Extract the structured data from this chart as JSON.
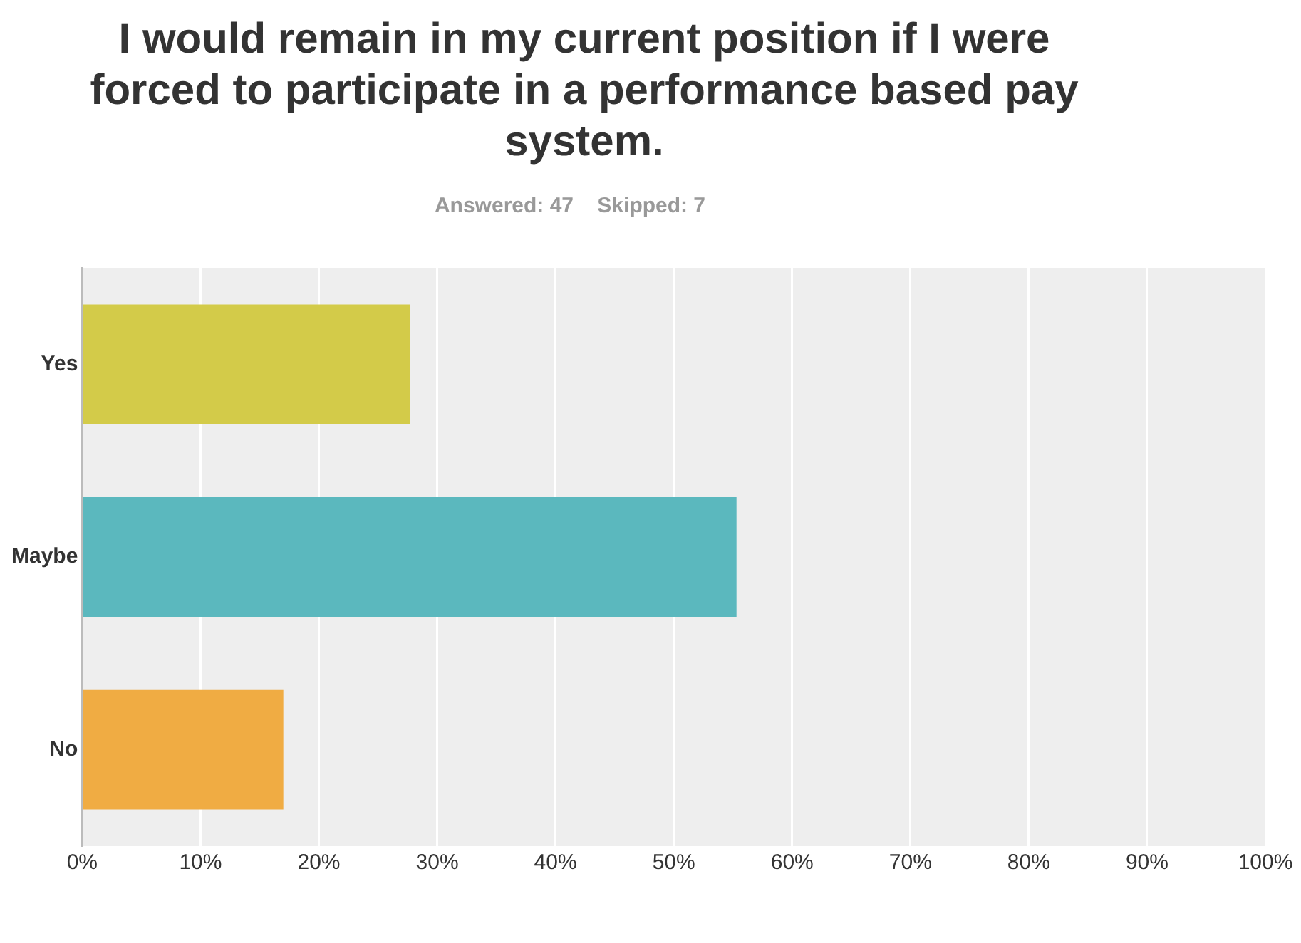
{
  "chart_data": {
    "type": "bar",
    "orientation": "horizontal",
    "title": "I would remain in my current position if I were forced to participate in a performance based pay system.",
    "subtitle": "Answered: 47    Skipped: 7",
    "categories": [
      "Yes",
      "Maybe",
      "No"
    ],
    "values": [
      27.7,
      55.3,
      17.0
    ],
    "colors": [
      "#d3cb49",
      "#5bb8be",
      "#f0ac43"
    ],
    "xlim": [
      0,
      100
    ],
    "xticks": [
      {
        "value": 0,
        "label": "0%"
      },
      {
        "value": 10,
        "label": "10%"
      },
      {
        "value": 20,
        "label": "20%"
      },
      {
        "value": 30,
        "label": "30%"
      },
      {
        "value": 40,
        "label": "40%"
      },
      {
        "value": 50,
        "label": "50%"
      },
      {
        "value": 60,
        "label": "60%"
      },
      {
        "value": 70,
        "label": "70%"
      },
      {
        "value": 80,
        "label": "80%"
      },
      {
        "value": 90,
        "label": "90%"
      },
      {
        "value": 100,
        "label": "100%"
      }
    ],
    "grid": "x",
    "legend": false
  }
}
